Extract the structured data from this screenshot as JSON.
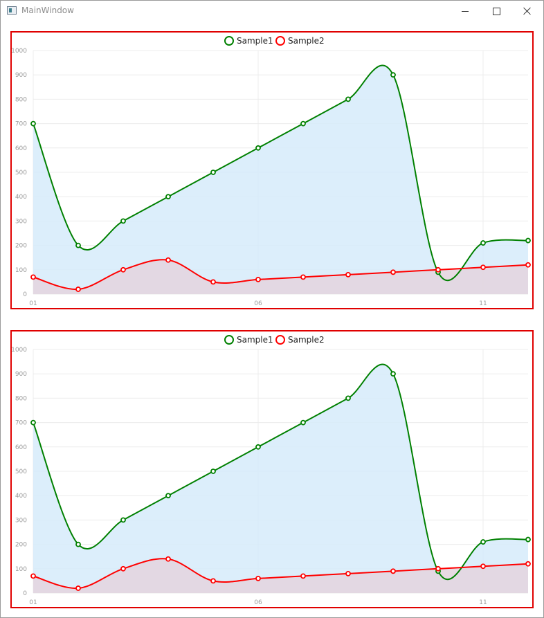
{
  "window": {
    "title": "MainWindow",
    "controls": {
      "minimize": "minimize",
      "maximize": "maximize",
      "close": "close"
    }
  },
  "chart_data": [
    {
      "type": "line",
      "x": [
        "01",
        "02",
        "03",
        "04",
        "05",
        "06",
        "07",
        "08",
        "09",
        "10",
        "11",
        "12"
      ],
      "xtick_labels": [
        "01",
        "06",
        "11"
      ],
      "ylim": [
        0,
        1000
      ],
      "yticks": [
        0,
        100,
        200,
        300,
        400,
        500,
        600,
        700,
        800,
        900,
        1000
      ],
      "grid": true,
      "legend_position": "top-center",
      "series": [
        {
          "name": "Sample1",
          "color": "#008000",
          "fill": "#d6ebfa",
          "values": [
            700,
            200,
            300,
            400,
            500,
            600,
            700,
            800,
            900,
            90,
            210,
            220
          ]
        },
        {
          "name": "Sample2",
          "color": "#ff0000",
          "fill": "#e4d3de",
          "values": [
            70,
            20,
            100,
            140,
            50,
            60,
            70,
            80,
            90,
            100,
            110,
            120
          ]
        }
      ]
    },
    {
      "type": "line",
      "x": [
        "01",
        "02",
        "03",
        "04",
        "05",
        "06",
        "07",
        "08",
        "09",
        "10",
        "11",
        "12"
      ],
      "xtick_labels": [
        "01",
        "06",
        "11"
      ],
      "ylim": [
        0,
        1000
      ],
      "yticks": [
        0,
        100,
        200,
        300,
        400,
        500,
        600,
        700,
        800,
        900,
        1000
      ],
      "grid": true,
      "legend_position": "top-center",
      "series": [
        {
          "name": "Sample1",
          "color": "#008000",
          "fill": "#d6ebfa",
          "values": [
            700,
            200,
            300,
            400,
            500,
            600,
            700,
            800,
            900,
            90,
            210,
            220
          ]
        },
        {
          "name": "Sample2",
          "color": "#ff0000",
          "fill": "#e4d3de",
          "values": [
            70,
            20,
            100,
            140,
            50,
            60,
            70,
            80,
            90,
            100,
            110,
            120
          ]
        }
      ]
    }
  ]
}
